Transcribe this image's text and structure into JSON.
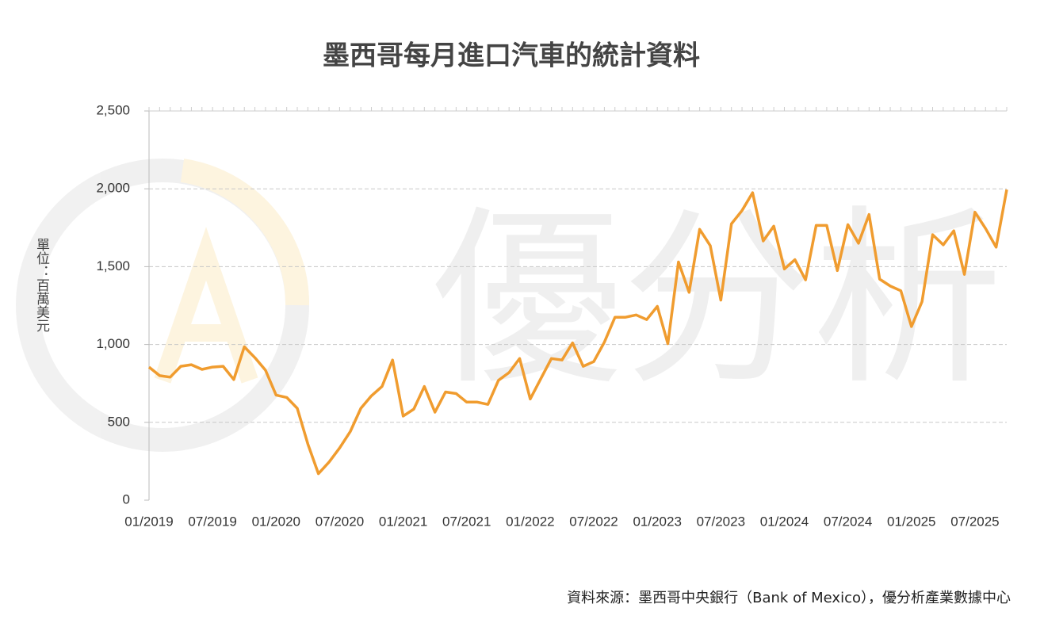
{
  "chart_data": {
    "type": "line",
    "title": "墨西哥每月進口汽車的統計資料",
    "y_label": "單位：百萬美元",
    "source": "資料來源：墨西哥中央銀行（Bank of Mexico），優分析產業數據中心",
    "watermark": "優分析",
    "categories": [
      "01/2019",
      null,
      null,
      null,
      null,
      null,
      "07/2019",
      null,
      null,
      null,
      null,
      null,
      "01/2020",
      null,
      null,
      null,
      null,
      null,
      "07/2020",
      null,
      null,
      null,
      null,
      null,
      "01/2021",
      null,
      null,
      null,
      null,
      null,
      "07/2021",
      null,
      null,
      null,
      null,
      null,
      "01/2022",
      null,
      null,
      null,
      null,
      null,
      "07/2022",
      null,
      null,
      null,
      null,
      null,
      "01/2023",
      null,
      null,
      null,
      null,
      null,
      "07/2023",
      null,
      null,
      null,
      null,
      null,
      "01/2024",
      null,
      null,
      null,
      null,
      null,
      "07/2024",
      null,
      null,
      null,
      null,
      null,
      "01/2025",
      null,
      null,
      null,
      null,
      null,
      "07/2025",
      null,
      null,
      null
    ],
    "series": [
      {
        "name": "進口汽車",
        "color": "#f09c2f",
        "values": [
          855,
          800,
          790,
          860,
          870,
          840,
          855,
          860,
          775,
          985,
          915,
          835,
          675,
          660,
          590,
          360,
          170,
          245,
          335,
          440,
          590,
          670,
          730,
          900,
          540,
          585,
          730,
          565,
          695,
          685,
          630,
          630,
          615,
          770,
          820,
          910,
          650,
          780,
          910,
          900,
          1010,
          860,
          890,
          1015,
          1175,
          1175,
          1190,
          1160,
          1245,
          1005,
          1530,
          1335,
          1740,
          1635,
          1285,
          1775,
          1860,
          1975,
          1665,
          1760,
          1485,
          1545,
          1415,
          1765,
          1765,
          1475,
          1770,
          1650,
          1835,
          1420,
          1375,
          1345,
          1115,
          1275,
          1705,
          1640,
          1730,
          1450,
          1850,
          1745,
          1625,
          1995
        ]
      }
    ],
    "ylim": [
      0,
      2500
    ],
    "yticks": [
      0,
      500,
      {
        "value": 1000,
        "label": "1,000"
      },
      {
        "value": 1500,
        "label": "1,500"
      },
      {
        "value": 2000,
        "label": "2,000"
      },
      {
        "value": 2500,
        "label": "2,500"
      }
    ],
    "grid": true
  }
}
